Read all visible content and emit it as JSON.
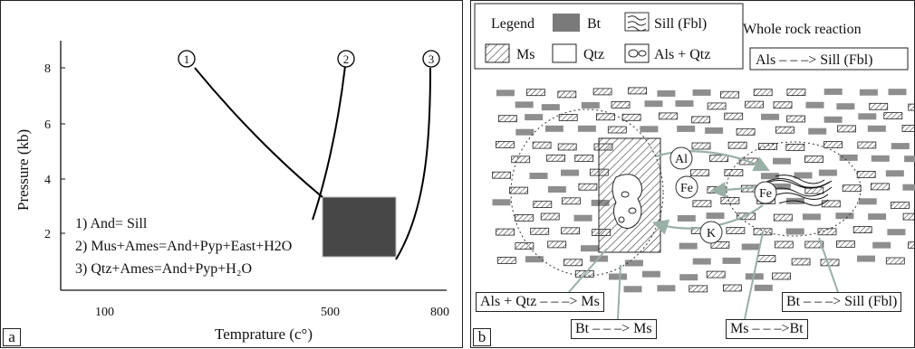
{
  "panel_a": {
    "letter": "a",
    "ylabel": "Pressure (kb)",
    "xlabel": "Temprature (c°)",
    "y_ticks": [
      "8",
      "6",
      "4",
      "2"
    ],
    "x_ticks": [
      "100",
      "500",
      "800"
    ],
    "curve_markers": [
      "1",
      "2",
      "3"
    ],
    "reactions": [
      "1) And= Sill",
      "2) Mus+Ames=And+Pyp+East+H2O",
      "3) Qtz+Ames=And+Pyp+H₂O"
    ],
    "colors": {
      "field": "#474747",
      "curve": "#000000"
    }
  },
  "panel_b": {
    "letter": "b",
    "legend": {
      "title": "Legend",
      "items": [
        {
          "swatch": "bt-swatch",
          "label": "Bt"
        },
        {
          "swatch": "sill-swatch",
          "label": "Sill (Fbl)"
        },
        {
          "swatch": "ms-swatch",
          "label": "Ms"
        },
        {
          "swatch": "qtz-swatch",
          "label": "Qtz"
        },
        {
          "swatch": "als-qtz-swatch",
          "label": "Als + Qtz"
        }
      ]
    },
    "whole_rock": {
      "title": "Whole rock reaction",
      "reaction": "Als – – –> Sill (Fbl)"
    },
    "elements": [
      "Al",
      "Fe",
      "Fe",
      "K"
    ],
    "reaction_boxes": [
      "Als + Qtz – – –> Ms",
      "Bt – – –> Ms",
      "Ms – – –>Bt",
      "Bt – – –> Sill (Fbl)"
    ],
    "colors": {
      "bt": "#8e8e8e",
      "arrow": "#9ab0a6"
    }
  }
}
